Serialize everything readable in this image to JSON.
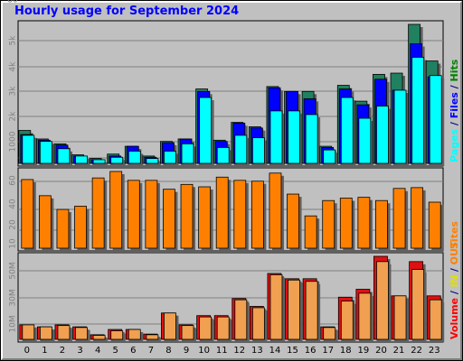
{
  "title": "Hourly usage for September 2024",
  "hours": [
    "0",
    "1",
    "2",
    "3",
    "4",
    "5",
    "6",
    "7",
    "8",
    "9",
    "10",
    "11",
    "12",
    "13",
    "14",
    "15",
    "16",
    "17",
    "18",
    "19",
    "20",
    "21",
    "22",
    "23"
  ],
  "colors": {
    "pages": "#0000ff",
    "files": "#00ffff",
    "hits": "#008000",
    "sites": "#ff8000",
    "volume": "#ff0000",
    "in": "#e0e000",
    "out": "#ff8000"
  },
  "chart_data": [
    {
      "type": "bar",
      "panel": "top",
      "categories": [
        "0",
        "1",
        "2",
        "3",
        "4",
        "5",
        "6",
        "7",
        "8",
        "9",
        "10",
        "11",
        "12",
        "13",
        "14",
        "15",
        "16",
        "17",
        "18",
        "19",
        "20",
        "21",
        "22",
        "23"
      ],
      "ylim": [
        0,
        5700
      ],
      "yticks": [
        "1000",
        "2k",
        "3k",
        "4k",
        "5k"
      ],
      "side_label": [
        "Pages",
        " / ",
        "Files",
        " / ",
        "Hits"
      ],
      "series": [
        {
          "name": "Hits",
          "values": [
            1350,
            1000,
            800,
            350,
            200,
            380,
            700,
            300,
            900,
            1000,
            3050,
            950,
            1680,
            1500,
            3150,
            2950,
            2950,
            700,
            3200,
            2550,
            3650,
            3700,
            5700,
            4200
          ]
        },
        {
          "name": "Pages",
          "values": [
            1180,
            950,
            750,
            300,
            150,
            300,
            700,
            250,
            850,
            1000,
            2950,
            900,
            1650,
            1450,
            3100,
            2950,
            2650,
            650,
            3050,
            2400,
            3450,
            3000,
            4900,
            3550
          ]
        },
        {
          "name": "Files",
          "values": [
            1150,
            900,
            600,
            300,
            150,
            250,
            500,
            200,
            500,
            800,
            2700,
            650,
            1150,
            1050,
            2150,
            2150,
            2000,
            550,
            2700,
            1850,
            2350,
            3000,
            4350,
            3600
          ]
        }
      ]
    },
    {
      "type": "bar",
      "panel": "middle",
      "categories": [
        "0",
        "1",
        "2",
        "3",
        "4",
        "5",
        "6",
        "7",
        "8",
        "9",
        "10",
        "11",
        "12",
        "13",
        "14",
        "15",
        "16",
        "17",
        "18",
        "19",
        "20",
        "21",
        "22",
        "23"
      ],
      "ylim": [
        0,
        95
      ],
      "yticks": [
        "10",
        "20",
        "40",
        "60",
        "80"
      ],
      "side_label": [
        "Sites"
      ],
      "series": [
        {
          "name": "Sites",
          "values": [
            85,
            65,
            48,
            52,
            87,
            95,
            84,
            84,
            73,
            79,
            76,
            88,
            84,
            83,
            93,
            67,
            40,
            59,
            62,
            63,
            59,
            74,
            75,
            57
          ]
        }
      ]
    },
    {
      "type": "bar",
      "panel": "bottom",
      "categories": [
        "0",
        "1",
        "2",
        "3",
        "4",
        "5",
        "6",
        "7",
        "8",
        "9",
        "10",
        "11",
        "12",
        "13",
        "14",
        "15",
        "16",
        "17",
        "18",
        "19",
        "20",
        "21",
        "22",
        "23"
      ],
      "ylim": [
        0,
        63
      ],
      "yticks": [
        "10M",
        "30M",
        "50M"
      ],
      "side_label": [
        "Volume",
        " / ",
        "IN",
        " / ",
        "OUT"
      ],
      "series": [
        {
          "name": "Volume",
          "values": [
            11,
            9.5,
            11,
            9.5,
            3.5,
            7.5,
            7.5,
            4,
            20,
            11,
            18,
            18,
            31,
            25,
            50,
            46,
            46,
            9.5,
            32,
            38,
            63,
            33,
            59,
            33
          ]
        },
        {
          "name": "OUT",
          "values": [
            11,
            9.5,
            10.5,
            9,
            3,
            6.5,
            7.5,
            3.5,
            20,
            10.5,
            17,
            17,
            30,
            24,
            49,
            45,
            44,
            9,
            29,
            35,
            59,
            33,
            53,
            30
          ]
        }
      ]
    }
  ]
}
